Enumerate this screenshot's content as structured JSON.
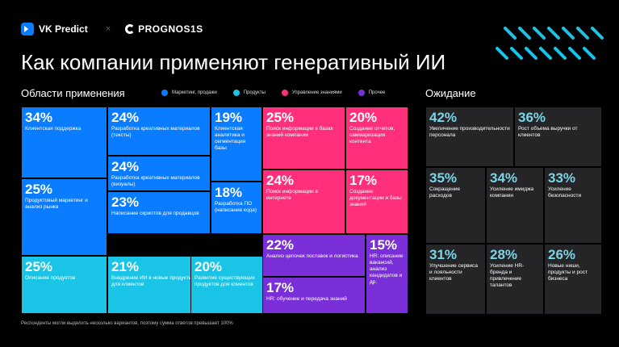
{
  "brand": {
    "vk": "VK Predict",
    "times": "×",
    "prognosis": "PROGNOS1S"
  },
  "title": "Как компании применяют генеративный ИИ",
  "areas_title": "Области применения",
  "expect_title": "Ожидание",
  "colors": {
    "marketing": "#0a7cff",
    "products": "#19c4e6",
    "knowledge": "#ff2f7c",
    "other": "#7a2ed8",
    "expect_bg": "#252528",
    "expect_value": "#7ad5e6"
  },
  "legend": [
    {
      "label": "Маркетинг, продажи",
      "color": "#0a7cff"
    },
    {
      "label": "Продукты",
      "color": "#19c4e6"
    },
    {
      "label": "Управление знаниями",
      "color": "#ff2f7c"
    },
    {
      "label": "Прочее",
      "color": "#7a2ed8"
    }
  ],
  "footnote": "Респонденты могли выделить несколько вариантов, поэтому сумма ответов превышает 100%",
  "chart_data": [
    {
      "type": "treemap",
      "title": "Области применения",
      "unit": "%",
      "items": [
        {
          "value": "34%",
          "label": "Клиентская поддержка",
          "group": "marketing"
        },
        {
          "value": "24%",
          "label": "Разработка креативных материалов (тексты)",
          "group": "marketing"
        },
        {
          "value": "19%",
          "label": "Клиентская аналитика и сегментация базы",
          "group": "marketing"
        },
        {
          "value": "24%",
          "label": "Разработка креативных материалов (визуалы)",
          "group": "marketing"
        },
        {
          "value": "18%",
          "label": "Разработка ПО (написание кода)",
          "group": "marketing"
        },
        {
          "value": "25%",
          "label": "Продуктовый маркетинг и анализ рынка",
          "group": "marketing"
        },
        {
          "value": "23%",
          "label": "Написание скриптов для продавцов",
          "group": "marketing"
        },
        {
          "value": "25%",
          "label": "Описание продуктов",
          "group": "products"
        },
        {
          "value": "21%",
          "label": "Внедрение ИИ в новые продукты для клиентов",
          "group": "products"
        },
        {
          "value": "20%",
          "label": "Развитие существующих продуктов для клиентов",
          "group": "products"
        },
        {
          "value": "25%",
          "label": "Поиск информации в базах знаний компании",
          "group": "knowledge"
        },
        {
          "value": "20%",
          "label": "Создание отчетов, саммаризация контента",
          "group": "knowledge"
        },
        {
          "value": "24%",
          "label": "Поиск информации в интернете",
          "group": "knowledge"
        },
        {
          "value": "17%",
          "label": "Создание документации и базы знаний",
          "group": "knowledge"
        },
        {
          "value": "22%",
          "label": "Анализ цепочек поставок и логистика",
          "group": "other"
        },
        {
          "value": "15%",
          "label": "HR: описание вакансий, анализ кандидатов и др.",
          "group": "other"
        },
        {
          "value": "17%",
          "label": "HR: обучение и передача знаний",
          "group": "other"
        }
      ]
    },
    {
      "type": "treemap",
      "title": "Ожидание",
      "unit": "%",
      "items": [
        {
          "value": "42%",
          "label": "Увеличение производительности персонала"
        },
        {
          "value": "36%",
          "label": "Рост объема выручки от клиентов"
        },
        {
          "value": "35%",
          "label": "Сокращение расходов"
        },
        {
          "value": "34%",
          "label": "Усиление имиджа компании"
        },
        {
          "value": "33%",
          "label": "Усиление безопасности"
        },
        {
          "value": "31%",
          "label": "Улучшение сервиса и лояльности клиентов"
        },
        {
          "value": "28%",
          "label": "Усиление HR-бренда и привлечение талантов"
        },
        {
          "value": "26%",
          "label": "Новые ниши, продукты и рост бизнеса"
        }
      ]
    }
  ]
}
